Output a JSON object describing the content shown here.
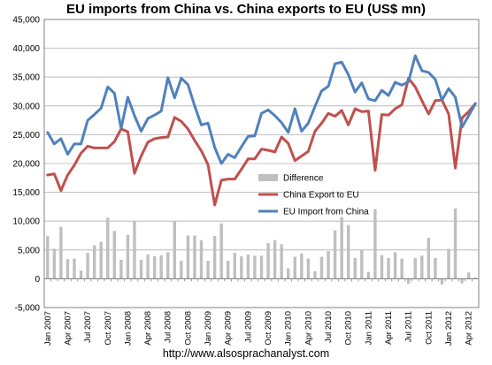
{
  "chart_data": {
    "type": "line",
    "title": "EU imports from China vs. China exports to EU (US$ mn)",
    "source": "http://www.alsosprachanalyst.com",
    "xlabel": "",
    "ylabel": "",
    "ylim": [
      -5000,
      45000
    ],
    "y_ticks": [
      -5000,
      0,
      5000,
      10000,
      15000,
      20000,
      25000,
      30000,
      35000,
      40000,
      45000
    ],
    "y_tick_labels": [
      "-5,000",
      "0",
      "5,000",
      "10,000",
      "15,000",
      "20,000",
      "25,000",
      "30,000",
      "35,000",
      "40,000",
      "45,000"
    ],
    "grid": true,
    "legend_position": "center-right",
    "x": [
      "Jan 2007",
      "Feb 2007",
      "Mar 2007",
      "Apr 2007",
      "May 2007",
      "Jun 2007",
      "Jul 2007",
      "Aug 2007",
      "Sep 2007",
      "Oct 2007",
      "Nov 2007",
      "Dec 2007",
      "Jan 2008",
      "Feb 2008",
      "Mar 2008",
      "Apr 2008",
      "May 2008",
      "Jun 2008",
      "Jul 2008",
      "Aug 2008",
      "Sep 2008",
      "Oct 2008",
      "Nov 2008",
      "Dec 2008",
      "Jan 2009",
      "Feb 2009",
      "Mar 2009",
      "Apr 2009",
      "May 2009",
      "Jun 2009",
      "Jul 2009",
      "Aug 2009",
      "Sep 2009",
      "Oct 2009",
      "Nov 2009",
      "Dec 2009",
      "Jan 2010",
      "Feb 2010",
      "Mar 2010",
      "Apr 2010",
      "May 2010",
      "Jun 2010",
      "Jul 2010",
      "Aug 2010",
      "Sep 2010",
      "Oct 2010",
      "Nov 2010",
      "Dec 2010",
      "Jan 2011",
      "Feb 2011",
      "Mar 2011",
      "Apr 2011",
      "May 2011",
      "Jun 2011",
      "Jul 2011",
      "Aug 2011",
      "Sep 2011",
      "Oct 2011",
      "Nov 2011",
      "Dec 2011",
      "Jan 2012",
      "Feb 2012",
      "Mar 2012",
      "Apr 2012",
      "May 2012"
    ],
    "x_tick_labels": [
      "Jan 2007",
      "Apr 2007",
      "Jul 2007",
      "Oct 2007",
      "Jan 2008",
      "Apr 2008",
      "Jul 2008",
      "Oct 2008",
      "Jan 2009",
      "Apr 2009",
      "Jul 2009",
      "Oct 2009",
      "Jan 2010",
      "Apr 2010",
      "Jul 2010",
      "Oct 2010",
      "Jan 2011",
      "Apr 2011",
      "Jul 2011",
      "Oct 2011",
      "Jan 2012",
      "Apr 2012"
    ],
    "series": [
      {
        "name": "Difference",
        "kind": "bar",
        "color": "#bfbfbf",
        "values": [
          7400,
          5200,
          9000,
          3400,
          3500,
          1400,
          4500,
          5800,
          6400,
          10600,
          8300,
          3300,
          7600,
          10000,
          3300,
          4200,
          3900,
          4100,
          4600,
          10000,
          3100,
          7500,
          7500,
          6700,
          3100,
          7400,
          9600,
          3100,
          4500,
          3900,
          4200,
          4000,
          4000,
          6200,
          6700,
          6000,
          1800,
          3800,
          4400,
          3500,
          1300,
          3800,
          4800,
          8400,
          10700,
          9300,
          3600,
          5000,
          1200,
          12100,
          4100,
          3600,
          4600,
          3500,
          -900,
          3600,
          4000,
          7100,
          3600,
          -1000,
          5200,
          12200,
          -800,
          1100,
          200
        ]
      },
      {
        "name": "China Export to EU",
        "kind": "line",
        "color": "#c0504d",
        "values": [
          18000,
          18200,
          15300,
          18000,
          19700,
          21800,
          23000,
          22700,
          22700,
          22700,
          23800,
          26000,
          25500,
          18300,
          21300,
          23700,
          24300,
          24500,
          24600,
          28000,
          27300,
          26000,
          24000,
          22200,
          19800,
          12800,
          17100,
          17300,
          17300,
          19000,
          20800,
          20800,
          22500,
          22300,
          22000,
          24600,
          23500,
          20500,
          21300,
          22100,
          25600,
          27000,
          28700,
          28200,
          29200,
          26700,
          29500,
          29000,
          29100,
          18800,
          28500,
          28400,
          29500,
          30200,
          34800,
          33300,
          30900,
          28600,
          30900,
          31000,
          28600,
          19200,
          27900,
          29000,
          30400
        ]
      },
      {
        "name": "EU Import from China",
        "kind": "line",
        "color": "#4f81bd",
        "values": [
          25400,
          23400,
          24300,
          21600,
          23400,
          23400,
          27500,
          28500,
          29600,
          33300,
          32200,
          26100,
          31500,
          28300,
          25600,
          27800,
          28400,
          29100,
          34900,
          31400,
          34800,
          33700,
          30000,
          26700,
          27000,
          22800,
          20000,
          21600,
          21000,
          22900,
          24700,
          24800,
          28700,
          29300,
          28300,
          27100,
          25400,
          29500,
          25600,
          27000,
          29900,
          32600,
          33400,
          37300,
          37600,
          35400,
          32400,
          34000,
          31200,
          30900,
          32700,
          31800,
          34100,
          33600,
          34200,
          38700,
          36100,
          35800,
          34600,
          31000,
          33000,
          31500,
          26300,
          28300,
          30400
        ]
      }
    ]
  }
}
